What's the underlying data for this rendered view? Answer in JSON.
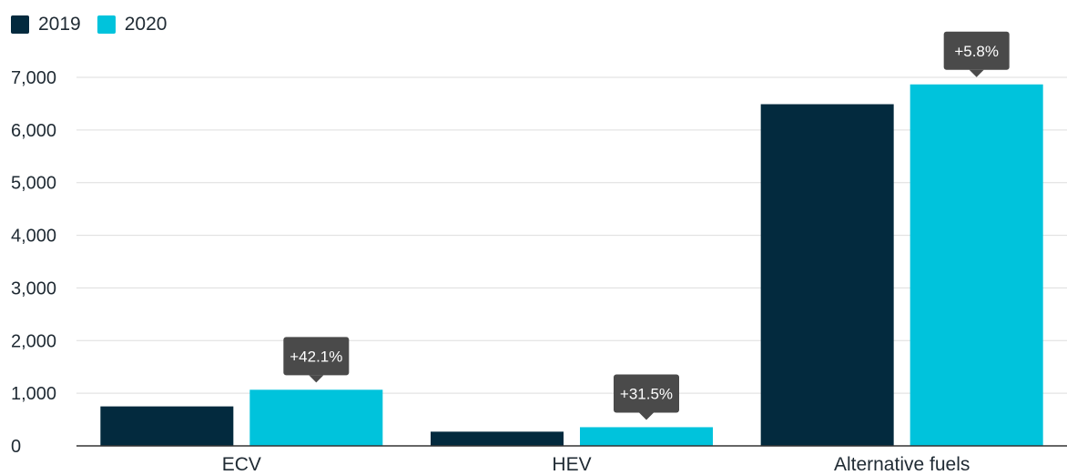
{
  "chart_data": {
    "type": "bar",
    "categories": [
      "ECV",
      "HEV",
      "Alternative fuels"
    ],
    "series": [
      {
        "name": "2019",
        "values": [
          750,
          270,
          6490
        ],
        "color": "#032a3e"
      },
      {
        "name": "2020",
        "values": [
          1066,
          355,
          6866
        ],
        "color": "#00c3dc"
      }
    ],
    "annotations": [
      "+42.1%",
      "+31.5%",
      "+5.8%"
    ],
    "yticks": [
      0,
      1000,
      2000,
      3000,
      4000,
      5000,
      6000,
      7000
    ],
    "ytick_labels": [
      "0",
      "1,000",
      "2,000",
      "3,000",
      "4,000",
      "5,000",
      "6,000",
      "7,000"
    ],
    "ylim": [
      0,
      7000
    ],
    "grid": true,
    "legend": "top-left",
    "title": "",
    "xlabel": "",
    "ylabel": ""
  },
  "colors": {
    "grid": "#dddddd",
    "axis": "#333333",
    "callout": "#4a4a4a"
  }
}
